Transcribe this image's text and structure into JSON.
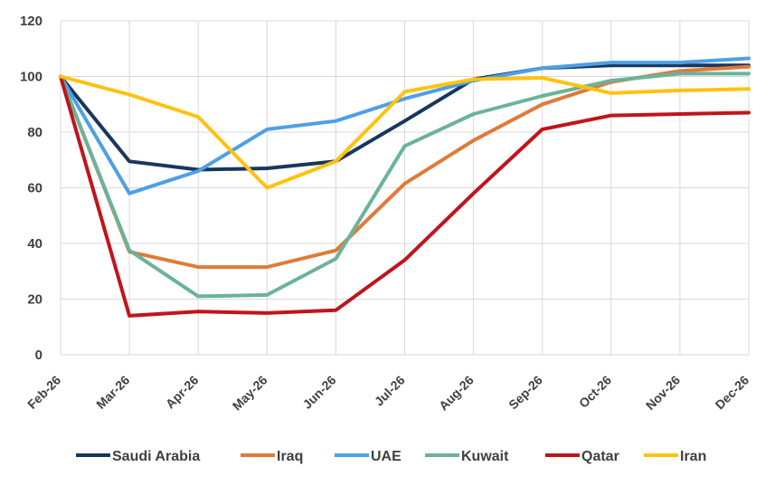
{
  "chart_data": {
    "type": "line",
    "title": "",
    "xlabel": "",
    "ylabel": "",
    "categories": [
      "Feb-26",
      "Mar-26",
      "Apr-26",
      "May-26",
      "Jun-26",
      "Jul-26",
      "Aug-26",
      "Sep-26",
      "Oct-26",
      "Nov-26",
      "Dec-26"
    ],
    "ylim": [
      0,
      120
    ],
    "yticks": [
      0,
      20,
      40,
      60,
      80,
      100,
      120
    ],
    "grid": true,
    "legend_position": "bottom",
    "series": [
      {
        "name": "Saudi Arabia",
        "color": "#17375e",
        "values": [
          100,
          69.5,
          66.5,
          67,
          69.5,
          84,
          99,
          103,
          104,
          104,
          104
        ]
      },
      {
        "name": "Iraq",
        "color": "#e07a3a",
        "values": [
          100,
          37,
          31.5,
          31.5,
          37.5,
          61.5,
          77,
          90,
          98,
          102,
          103.5
        ]
      },
      {
        "name": "UAE",
        "color": "#4e9fe6",
        "values": [
          100,
          58,
          66,
          81,
          84,
          92,
          98.5,
          103,
          105,
          105,
          106.5
        ]
      },
      {
        "name": "Kuwait",
        "color": "#6ab39a",
        "values": [
          100,
          37.5,
          21,
          21.5,
          34.5,
          75,
          86.5,
          93,
          98.5,
          101,
          101
        ]
      },
      {
        "name": "Qatar",
        "color": "#c0141c",
        "values": [
          100,
          14,
          15.5,
          15,
          16,
          34,
          58,
          81,
          86,
          86.5,
          87
        ]
      },
      {
        "name": "Iran",
        "color": "#ffc20e",
        "values": [
          100,
          93.5,
          85.5,
          60,
          69.5,
          94.5,
          99,
          99.5,
          94,
          95,
          95.5
        ]
      }
    ]
  }
}
